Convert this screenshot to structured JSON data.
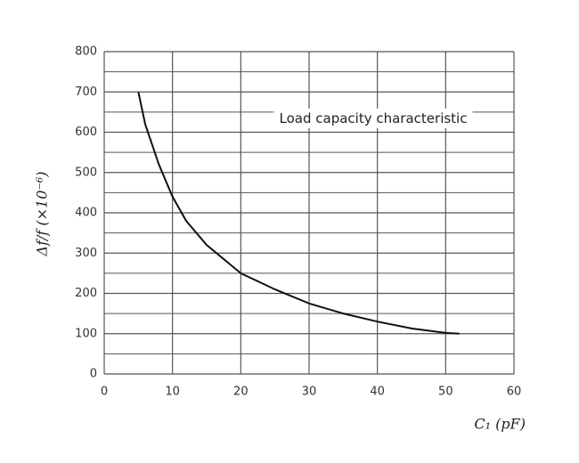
{
  "chart_data": {
    "type": "line",
    "x_label": "C₁ (pF)",
    "y_label": "Δf/f (×10⁻⁶)",
    "annotation": "Load capacity characteristic",
    "xlim": [
      0,
      60
    ],
    "xticks": [
      0,
      10,
      20,
      30,
      40,
      50,
      60
    ],
    "ylim": [
      0,
      800
    ],
    "yticks": [
      0,
      100,
      200,
      300,
      400,
      500,
      600,
      700,
      800
    ],
    "y_minor_grid": [
      50,
      150,
      250,
      350,
      450,
      550,
      650,
      750
    ],
    "grid": true,
    "series": [
      {
        "color": "#111111",
        "x": [
          5,
          6,
          8,
          10,
          12,
          15,
          20,
          25,
          30,
          35,
          40,
          45,
          50,
          52
        ],
        "values": [
          700,
          620,
          520,
          440,
          380,
          320,
          250,
          210,
          175,
          150,
          130,
          113,
          102,
          100
        ]
      }
    ]
  }
}
